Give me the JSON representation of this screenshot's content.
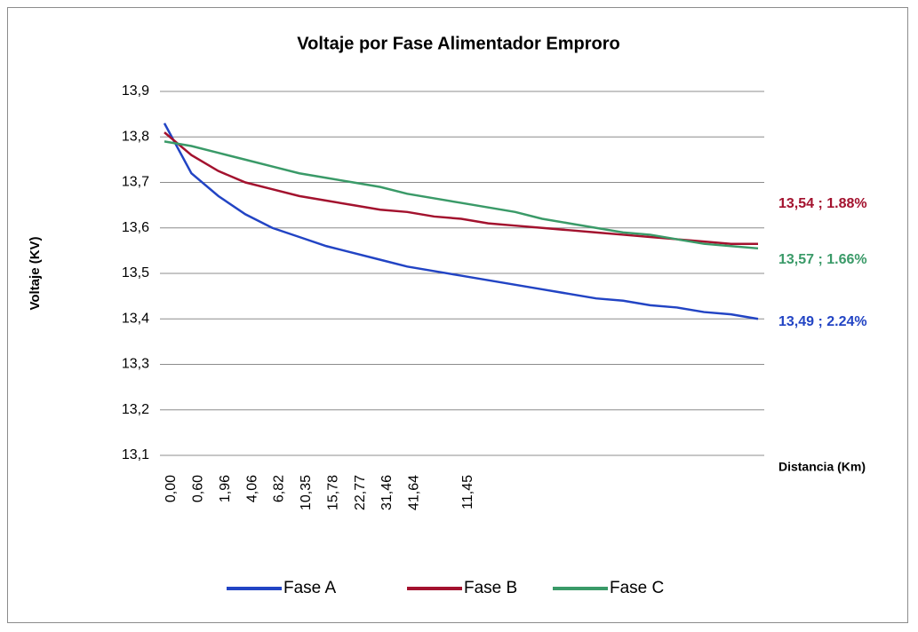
{
  "chart_data": {
    "type": "line",
    "title": "Voltaje por Fase Alimentador Emproro",
    "y_label": "Voltaje (KV)",
    "x_label": "Distancia (Km)",
    "categories": [
      "0,00",
      "0,60",
      "1,96",
      "4,06",
      "6,82",
      "10,35",
      "15,78",
      "22,77",
      "31,46",
      "41,64",
      null,
      "11,45",
      null,
      null,
      null,
      null,
      null,
      null,
      null,
      null,
      null,
      null,
      null
    ],
    "series": [
      {
        "name": "Fase A",
        "color": "#2244c4",
        "values": [
          13.83,
          13.72,
          13.67,
          13.63,
          13.6,
          13.58,
          13.56,
          13.545,
          13.53,
          13.515,
          13.505,
          13.495,
          13.485,
          13.475,
          13.465,
          13.455,
          13.445,
          13.44,
          13.43,
          13.425,
          13.415,
          13.41,
          13.4
        ]
      },
      {
        "name": "Fase B",
        "color": "#a3122e",
        "values": [
          13.81,
          13.76,
          13.725,
          13.7,
          13.685,
          13.67,
          13.66,
          13.65,
          13.64,
          13.635,
          13.625,
          13.62,
          13.61,
          13.605,
          13.6,
          13.595,
          13.59,
          13.585,
          13.58,
          13.575,
          13.57,
          13.565,
          13.565
        ]
      },
      {
        "name": "Fase C",
        "color": "#3a9a68",
        "values": [
          13.79,
          13.78,
          13.765,
          13.75,
          13.735,
          13.72,
          13.71,
          13.7,
          13.69,
          13.675,
          13.665,
          13.655,
          13.645,
          13.635,
          13.62,
          13.61,
          13.6,
          13.59,
          13.585,
          13.575,
          13.565,
          13.56,
          13.555
        ]
      }
    ],
    "ylim": [
      13.1,
      13.9
    ],
    "yticks": [
      {
        "value": 13.1,
        "label": "13,1"
      },
      {
        "value": 13.2,
        "label": "13,2"
      },
      {
        "value": 13.3,
        "label": "13,3"
      },
      {
        "value": 13.4,
        "label": "13,4"
      },
      {
        "value": 13.5,
        "label": "13,5"
      },
      {
        "value": 13.6,
        "label": "13,6"
      },
      {
        "value": 13.7,
        "label": "13,7"
      },
      {
        "value": 13.8,
        "label": "13,8"
      },
      {
        "value": 13.9,
        "label": "13,9"
      }
    ],
    "grid": true,
    "legend": "bottom",
    "annotations": [
      {
        "text": "13,54 ; 1.88%",
        "color": "#a3122e"
      },
      {
        "text": "13,57 ; 1.66%",
        "color": "#3a9a68"
      },
      {
        "text": "13,49 ; 2.24%",
        "color": "#2244c4"
      }
    ]
  }
}
